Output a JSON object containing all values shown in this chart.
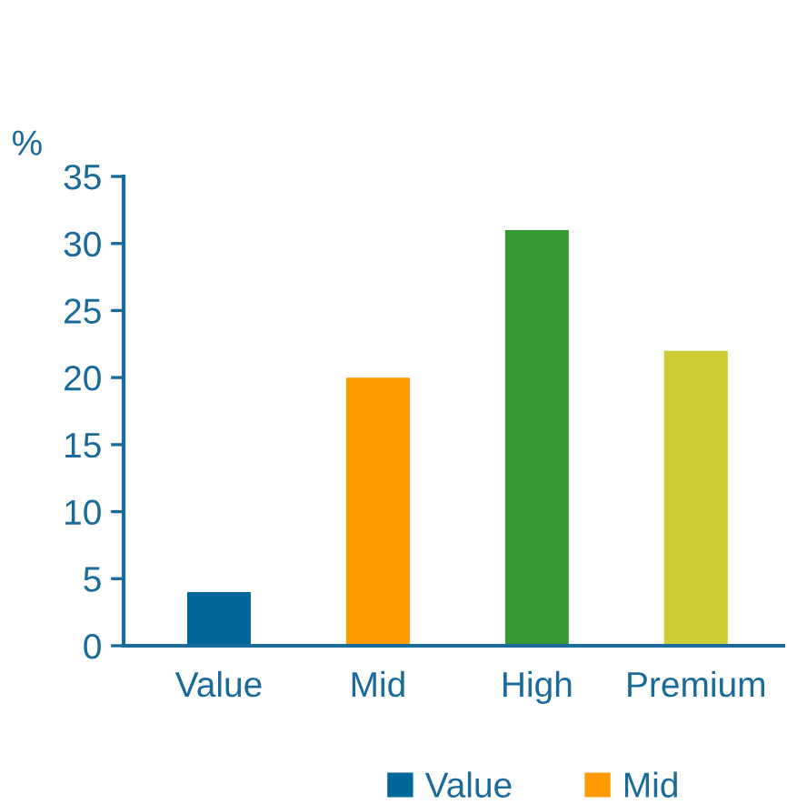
{
  "chart_data": {
    "type": "bar",
    "ylabel": "%",
    "categories": [
      "Value",
      "Mid",
      "High",
      "Premium"
    ],
    "series": [
      {
        "name": "Value",
        "color": "#00679a",
        "values": [
          4,
          null,
          null,
          null
        ]
      },
      {
        "name": "Mid",
        "color": "#fd9a00",
        "values": [
          null,
          20,
          null,
          null
        ]
      },
      {
        "color": "#339933",
        "values": [
          null,
          null,
          31,
          null
        ]
      },
      {
        "color": "#cccc33",
        "values": [
          null,
          null,
          null,
          22
        ]
      }
    ],
    "ylim": [
      0,
      35
    ],
    "yticks": [
      0,
      5,
      10,
      15,
      20,
      25,
      30,
      35
    ],
    "grid": false,
    "legend": "bottom"
  }
}
